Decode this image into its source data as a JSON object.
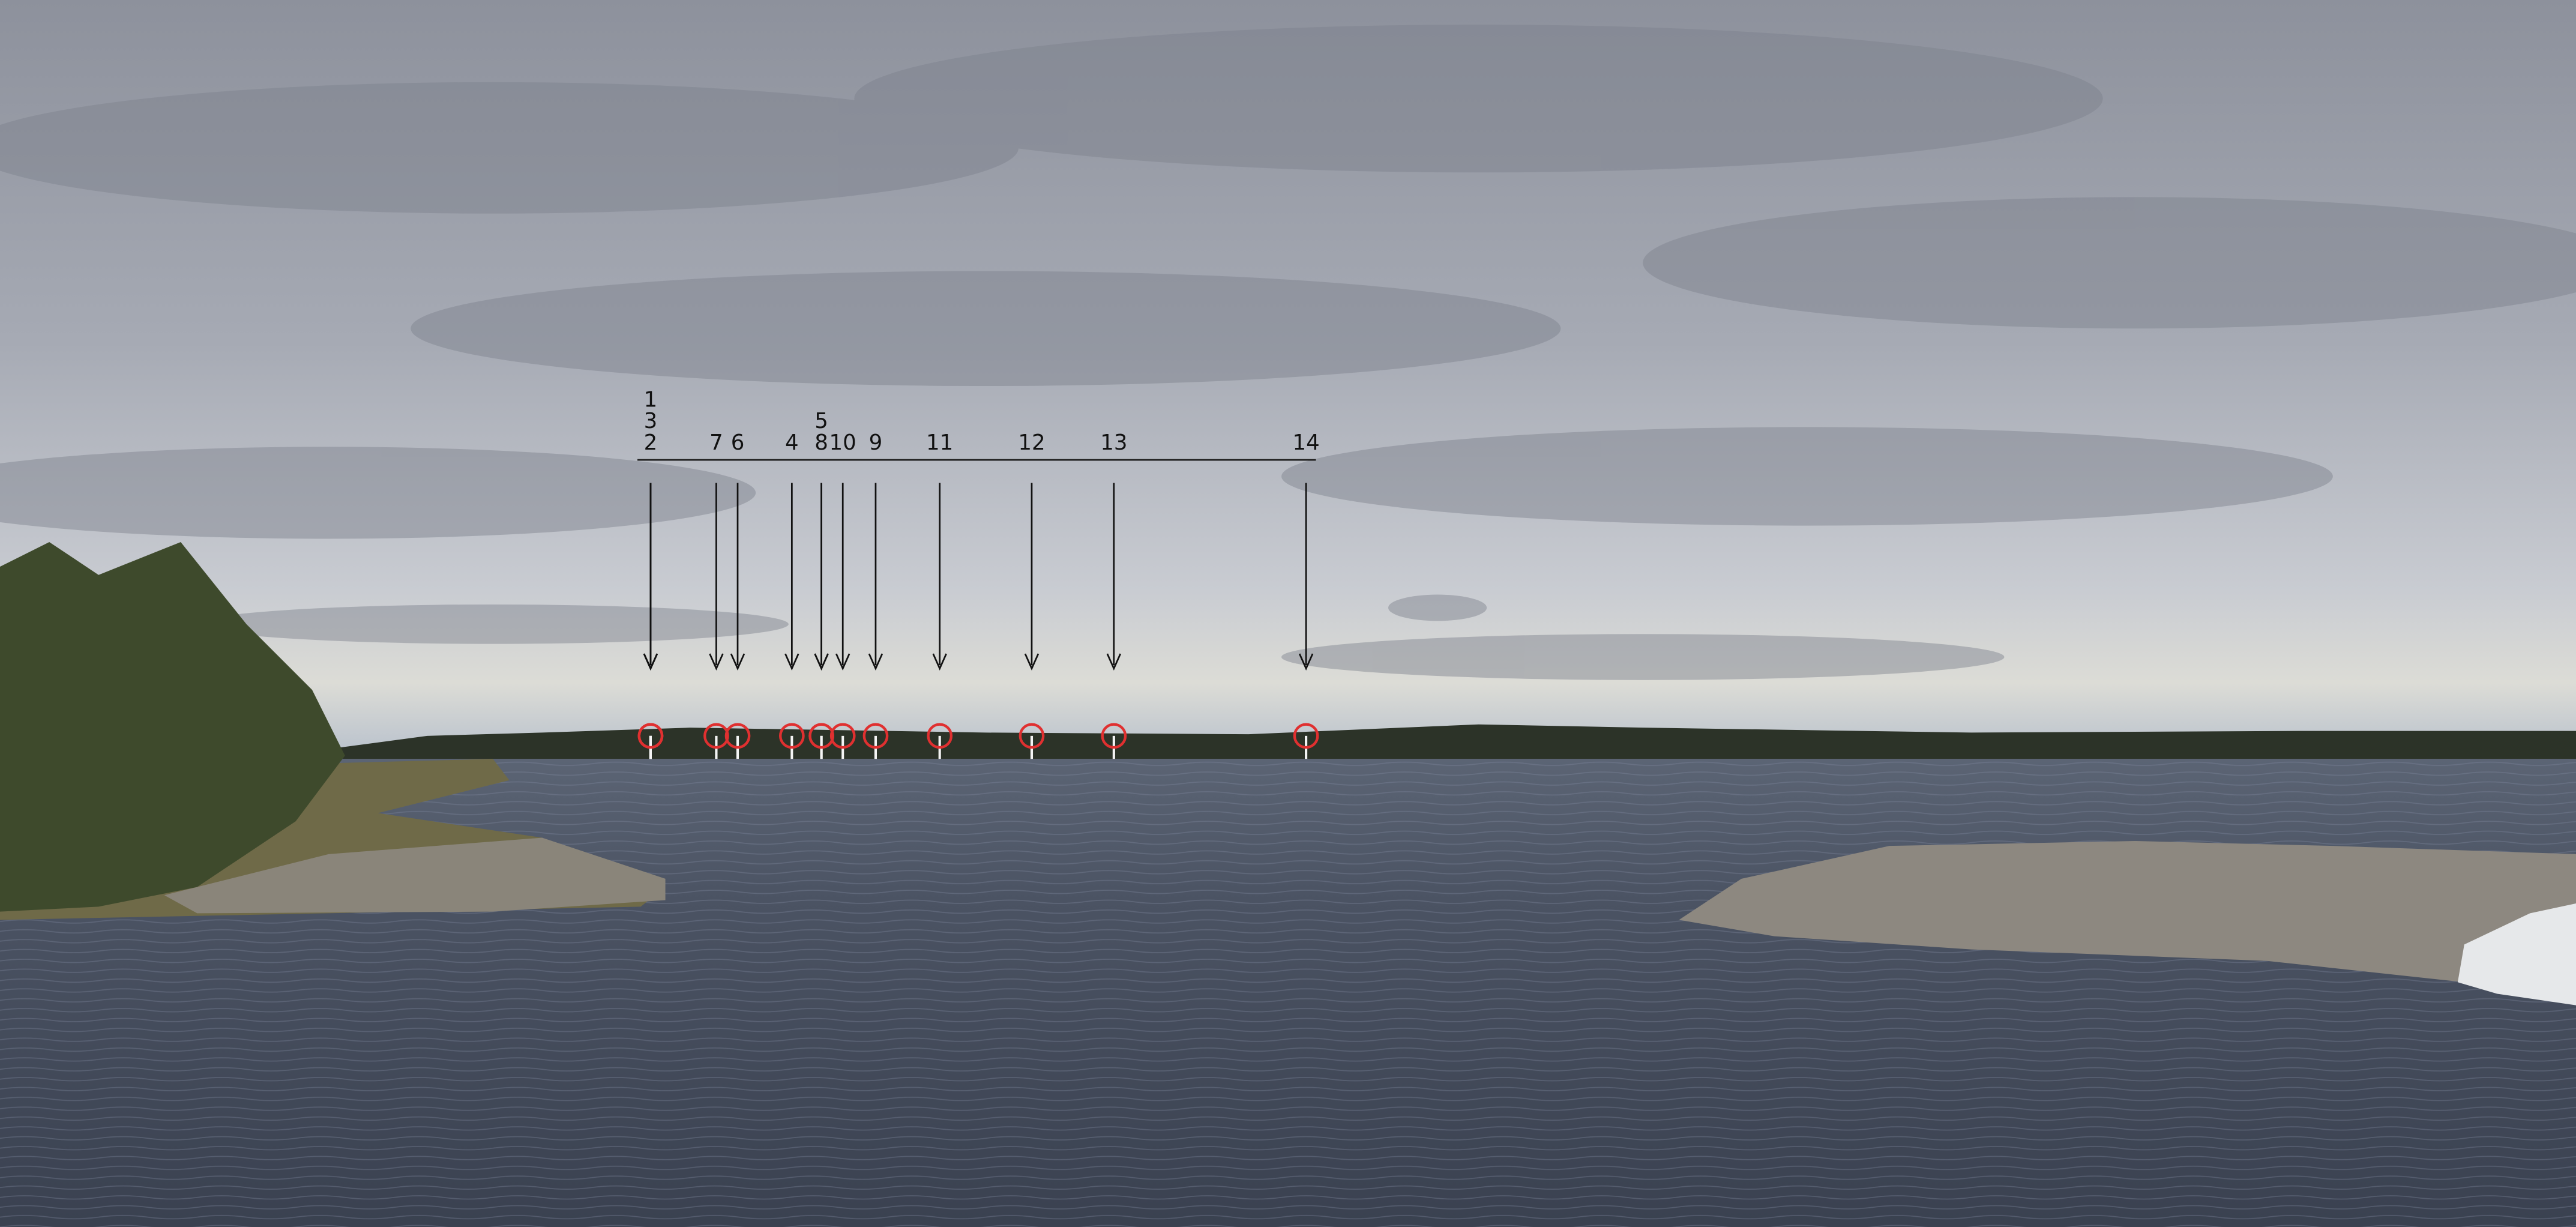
{
  "markers": [
    {
      "label": "1"
    },
    {
      "label": "2"
    },
    {
      "label": "3"
    },
    {
      "label": "4"
    },
    {
      "label": "5"
    },
    {
      "label": "6"
    },
    {
      "label": "7"
    },
    {
      "label": "8"
    },
    {
      "label": "9"
    },
    {
      "label": "10"
    },
    {
      "label": "11"
    },
    {
      "label": "12"
    },
    {
      "label": "13"
    },
    {
      "label": "14"
    }
  ]
}
